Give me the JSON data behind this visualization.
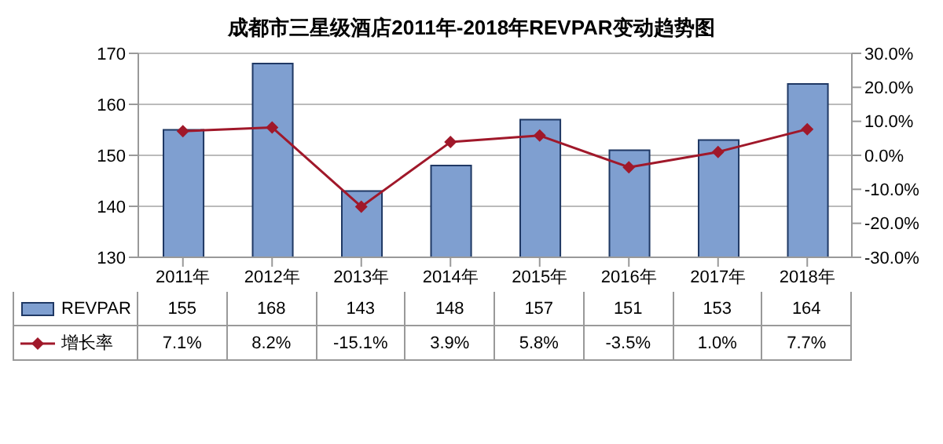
{
  "chart_data": {
    "type": "bar",
    "title": "成都市三星级酒店2011年-2018年REVPAR变动趋势图",
    "categories": [
      "2011年",
      "2012年",
      "2013年",
      "2014年",
      "2015年",
      "2016年",
      "2017年",
      "2018年"
    ],
    "series": [
      {
        "name": "REVPAR",
        "color": "#7f9fd0",
        "values": [
          155,
          168,
          143,
          148,
          157,
          151,
          153,
          164
        ],
        "value_labels": [
          "155",
          "168",
          "143",
          "148",
          "157",
          "151",
          "153",
          "164"
        ]
      },
      {
        "name": "增长率",
        "type": "line",
        "axis": "y2",
        "marker": "diamond",
        "color": "#a0182a",
        "values": [
          7.1,
          8.2,
          -15.1,
          3.9,
          5.8,
          -3.5,
          1.0,
          7.7
        ],
        "value_labels": [
          "7.1%",
          "8.2%",
          "-15.1%",
          "3.9%",
          "5.8%",
          "-3.5%",
          "1.0%",
          "7.7%"
        ]
      }
    ],
    "ylim": [
      130,
      170
    ],
    "yticks": [
      130,
      140,
      150,
      160,
      170
    ],
    "y2lim": [
      -30,
      30
    ],
    "y2ticks": [
      {
        "value": -30,
        "label": "-30.0%"
      },
      {
        "value": -20,
        "label": "-20.0%"
      },
      {
        "value": -10,
        "label": "-10.0%"
      },
      {
        "value": 0,
        "label": "0.0%"
      },
      {
        "value": 10,
        "label": "10.0%"
      },
      {
        "value": 20,
        "label": "20.0%"
      },
      {
        "value": 30,
        "label": "30.0%"
      }
    ],
    "grid": "y",
    "legend": "bottom"
  }
}
